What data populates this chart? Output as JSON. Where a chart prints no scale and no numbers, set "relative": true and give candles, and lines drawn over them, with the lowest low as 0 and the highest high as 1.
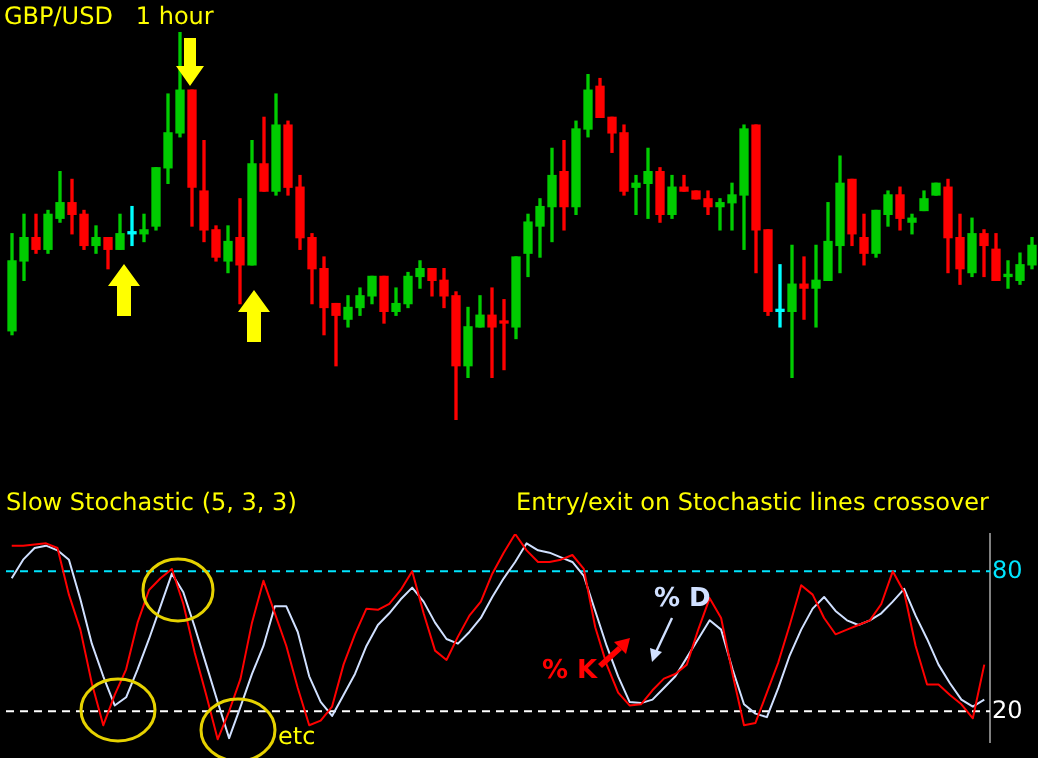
{
  "chart_data": [
    {
      "type": "candlestick",
      "title": "GBP/USD   1 hour",
      "relative": true,
      "tick_labels": false,
      "categories": [
        null,
        null,
        null,
        null,
        null,
        null,
        null,
        null,
        null,
        null,
        null,
        null,
        null,
        null,
        null,
        null,
        null,
        null,
        null,
        null,
        null,
        null,
        null,
        null,
        null,
        null,
        null,
        null,
        null,
        null,
        null,
        null,
        null,
        null,
        null,
        null,
        null,
        null,
        null,
        null,
        null,
        null,
        null,
        null,
        null,
        null,
        null,
        null,
        null,
        null,
        null,
        null,
        null,
        null,
        null,
        null,
        null,
        null,
        null,
        null,
        null,
        null,
        null,
        null,
        null,
        null,
        null,
        null,
        null,
        null,
        null,
        null,
        null,
        null,
        null,
        null,
        null,
        null,
        null,
        null,
        null,
        null,
        null,
        null,
        null,
        null
      ],
      "ohlc": [
        [
          0.23,
          0.48,
          0.22,
          0.41
        ],
        [
          0.41,
          0.53,
          0.36,
          0.47
        ],
        [
          0.47,
          0.53,
          0.43,
          0.44
        ],
        [
          0.44,
          0.54,
          0.43,
          0.53
        ],
        [
          0.52,
          0.64,
          0.51,
          0.56
        ],
        [
          0.56,
          0.62,
          0.48,
          0.53
        ],
        [
          0.53,
          0.54,
          0.44,
          0.45
        ],
        [
          0.45,
          0.5,
          0.43,
          0.47
        ],
        [
          0.47,
          0.47,
          0.39,
          0.44
        ],
        [
          0.44,
          0.53,
          0.44,
          0.48
        ],
        [
          0.48,
          0.55,
          0.45,
          0.48
        ],
        [
          0.48,
          0.53,
          0.46,
          0.49
        ],
        [
          0.5,
          0.65,
          0.49,
          0.65
        ],
        [
          0.65,
          0.84,
          0.61,
          0.74
        ],
        [
          0.74,
          1,
          0.73,
          0.85
        ],
        [
          0.85,
          0.85,
          0.5,
          0.6
        ],
        [
          0.59,
          0.72,
          0.46,
          0.49
        ],
        [
          0.49,
          0.5,
          0.41,
          0.42
        ],
        [
          0.41,
          0.5,
          0.38,
          0.46
        ],
        [
          0.47,
          0.57,
          0.3,
          0.4
        ],
        [
          0.4,
          0.72,
          0.4,
          0.66
        ],
        [
          0.66,
          0.78,
          0.59,
          0.59
        ],
        [
          0.59,
          0.84,
          0.58,
          0.76
        ],
        [
          0.76,
          0.77,
          0.58,
          0.6
        ],
        [
          0.6,
          0.63,
          0.44,
          0.47
        ],
        [
          0.47,
          0.48,
          0.3,
          0.39
        ],
        [
          0.39,
          0.42,
          0.22,
          0.29
        ],
        [
          0.3,
          0.3,
          0.14,
          0.27
        ],
        [
          0.26,
          0.32,
          0.24,
          0.29
        ],
        [
          0.29,
          0.34,
          0.27,
          0.32
        ],
        [
          0.32,
          0.37,
          0.3,
          0.37
        ],
        [
          0.37,
          0.37,
          0.25,
          0.28
        ],
        [
          0.28,
          0.34,
          0.27,
          0.3
        ],
        [
          0.3,
          0.38,
          0.29,
          0.37
        ],
        [
          0.37,
          0.41,
          0.34,
          0.39
        ],
        [
          0.39,
          0.39,
          0.32,
          0.36
        ],
        [
          0.36,
          0.39,
          0.29,
          0.32
        ],
        [
          0.32,
          0.33,
          0,
          0.14
        ],
        [
          0.14,
          0.29,
          0.11,
          0.24
        ],
        [
          0.24,
          0.32,
          0.24,
          0.27
        ],
        [
          0.27,
          0.34,
          0.11,
          0.24
        ],
        [
          0.25,
          0.31,
          0.13,
          0.25
        ],
        [
          0.24,
          0.42,
          0.21,
          0.42
        ],
        [
          0.43,
          0.53,
          0.37,
          0.51
        ],
        [
          0.5,
          0.57,
          0.42,
          0.55
        ],
        [
          0.55,
          0.7,
          0.46,
          0.63
        ],
        [
          0.64,
          0.72,
          0.49,
          0.55
        ],
        [
          0.55,
          0.77,
          0.53,
          0.75
        ],
        [
          0.75,
          0.89,
          0.73,
          0.85
        ],
        [
          0.86,
          0.88,
          0.78,
          0.78
        ],
        [
          0.78,
          0.78,
          0.69,
          0.74
        ],
        [
          0.74,
          0.76,
          0.58,
          0.59
        ],
        [
          0.6,
          0.63,
          0.53,
          0.61
        ],
        [
          0.61,
          0.7,
          0.52,
          0.64
        ],
        [
          0.64,
          0.65,
          0.51,
          0.53
        ],
        [
          0.53,
          0.63,
          0.52,
          0.6
        ],
        [
          0.6,
          0.63,
          0.59,
          0.59
        ],
        [
          0.59,
          0.59,
          0.57,
          0.57
        ],
        [
          0.57,
          0.59,
          0.53,
          0.55
        ],
        [
          0.55,
          0.57,
          0.49,
          0.56
        ],
        [
          0.56,
          0.61,
          0.49,
          0.58
        ],
        [
          0.58,
          0.76,
          0.44,
          0.75
        ],
        [
          0.76,
          0.76,
          0.38,
          0.49
        ],
        [
          0.49,
          0.49,
          0.27,
          0.28
        ],
        [
          0.28,
          0.4,
          0.24,
          0.28
        ],
        [
          0.28,
          0.45,
          0.11,
          0.35
        ],
        [
          0.35,
          0.42,
          0.26,
          0.34
        ],
        [
          0.34,
          0.45,
          0.24,
          0.36
        ],
        [
          0.36,
          0.56,
          0.36,
          0.46
        ],
        [
          0.45,
          0.68,
          0.38,
          0.61
        ],
        [
          0.62,
          0.62,
          0.45,
          0.48
        ],
        [
          0.47,
          0.53,
          0.4,
          0.43
        ],
        [
          0.43,
          0.54,
          0.42,
          0.54
        ],
        [
          0.53,
          0.59,
          0.5,
          0.58
        ],
        [
          0.58,
          0.6,
          0.49,
          0.52
        ],
        [
          0.51,
          0.53,
          0.48,
          0.52
        ],
        [
          0.54,
          0.59,
          0.54,
          0.57
        ],
        [
          0.58,
          0.61,
          0.58,
          0.61
        ],
        [
          0.6,
          0.62,
          0.38,
          0.47
        ],
        [
          0.47,
          0.53,
          0.35,
          0.39
        ],
        [
          0.38,
          0.52,
          0.37,
          0.48
        ],
        [
          0.48,
          0.49,
          0.37,
          0.45
        ],
        [
          0.44,
          0.48,
          0.36,
          0.36
        ],
        [
          0.37,
          0.41,
          0.34,
          0.37
        ],
        [
          0.36,
          0.43,
          0.35,
          0.4
        ],
        [
          0.4,
          0.47,
          0.39,
          0.45
        ]
      ],
      "colors": [
        "#00cc00",
        "#00cc00",
        "#ff0000",
        "#00cc00",
        "#00cc00",
        "#ff0000",
        "#ff0000",
        "#00cc00",
        "#ff0000",
        "#00cc00",
        "#00ffff",
        "#00cc00",
        "#00cc00",
        "#00cc00",
        "#00cc00",
        "#ff0000",
        "#ff0000",
        "#ff0000",
        "#00cc00",
        "#ff0000",
        "#00cc00",
        "#ff0000",
        "#00cc00",
        "#ff0000",
        "#ff0000",
        "#ff0000",
        "#ff0000",
        "#ff0000",
        "#00cc00",
        "#00cc00",
        "#00cc00",
        "#ff0000",
        "#00cc00",
        "#00cc00",
        "#00cc00",
        "#ff0000",
        "#ff0000",
        "#ff0000",
        "#00cc00",
        "#00cc00",
        "#ff0000",
        "#ff0000",
        "#00cc00",
        "#00cc00",
        "#00cc00",
        "#00cc00",
        "#ff0000",
        "#00cc00",
        "#00cc00",
        "#ff0000",
        "#ff0000",
        "#ff0000",
        "#00cc00",
        "#00cc00",
        "#ff0000",
        "#00cc00",
        "#ff0000",
        "#ff0000",
        "#ff0000",
        "#00cc00",
        "#00cc00",
        "#00cc00",
        "#ff0000",
        "#ff0000",
        "#00ffff",
        "#00cc00",
        "#ff0000",
        "#00cc00",
        "#00cc00",
        "#00cc00",
        "#ff0000",
        "#ff0000",
        "#00cc00",
        "#00cc00",
        "#ff0000",
        "#00cc00",
        "#00cc00",
        "#00cc00",
        "#ff0000",
        "#ff0000",
        "#00cc00",
        "#ff0000",
        "#ff0000",
        "#00cc00",
        "#00cc00",
        "#00cc00"
      ]
    },
    {
      "type": "line",
      "title": "Slow Stochastic (5, 3, 3)",
      "annotations": [
        "Entry/exit on Stochastic lines crossover",
        "etc"
      ],
      "tick_labels": "y",
      "marker": "none",
      "ylim": [
        7,
        96
      ],
      "yticks": [
        20,
        80
      ],
      "categories": [
        null,
        null,
        null,
        null,
        null,
        null,
        null,
        null,
        null,
        null,
        null,
        null,
        null,
        null,
        null,
        null,
        null,
        null,
        null,
        null,
        null,
        null,
        null,
        null,
        null,
        null,
        null,
        null,
        null,
        null,
        null,
        null,
        null,
        null,
        null,
        null,
        null,
        null,
        null,
        null,
        null,
        null,
        null,
        null,
        null,
        null,
        null,
        null,
        null,
        null,
        null,
        null,
        null,
        null,
        null,
        null,
        null,
        null,
        null,
        null,
        null,
        null,
        null,
        null,
        null,
        null,
        null,
        null,
        null,
        null,
        null,
        null,
        null,
        null,
        null,
        null,
        null,
        null,
        null,
        null,
        null,
        null,
        null,
        null,
        null,
        null
      ],
      "ref_lines": [
        {
          "axis": "y",
          "value": 80,
          "color": "#00e5ff",
          "line_style": "dashed"
        },
        {
          "axis": "y",
          "value": 20,
          "color": "#ffffff",
          "line_style": "dashed"
        }
      ],
      "series": [
        {
          "name": "% K",
          "color": "#ff0000",
          "values": [
            91,
            91,
            91.5,
            92,
            90,
            70,
            55,
            32,
            14,
            27,
            38,
            58,
            72,
            77,
            81,
            66,
            45,
            27,
            8,
            20,
            34,
            58,
            76,
            62,
            48,
            30,
            14,
            16,
            22,
            40,
            53,
            64,
            63.5,
            66,
            72,
            80,
            62,
            46,
            42,
            52,
            61,
            67,
            79,
            88,
            96,
            89,
            84,
            84,
            85,
            87,
            81,
            56,
            40,
            28,
            22.5,
            23,
            29,
            34,
            36,
            40,
            55,
            68.5,
            60,
            36,
            14,
            15,
            28,
            41,
            57,
            74,
            70,
            60,
            53,
            55,
            57,
            59,
            66,
            80,
            71,
            48,
            31.5,
            31.5,
            27,
            23,
            17,
            40
          ]
        },
        {
          "name": "% D",
          "color": "#d0e0ff",
          "values": [
            77,
            85,
            90,
            91,
            89,
            85,
            68,
            49,
            35,
            22.5,
            26,
            38,
            51,
            65,
            79,
            71,
            56,
            40,
            24,
            8.5,
            22,
            36,
            48,
            65,
            65,
            54,
            35,
            24,
            18,
            27,
            36,
            48,
            57,
            62,
            68,
            73,
            67,
            58,
            51,
            49,
            54,
            60,
            69,
            77,
            84,
            92,
            89,
            88,
            86,
            84,
            78,
            63,
            48,
            35,
            24,
            23.5,
            25,
            30,
            35,
            43,
            51,
            59,
            55,
            38,
            23,
            19,
            17.5,
            30,
            44,
            55,
            64,
            69,
            63,
            59,
            57,
            59,
            62,
            67,
            72.5,
            61,
            51,
            40,
            32,
            25,
            22,
            25
          ]
        }
      ]
    }
  ]
}
